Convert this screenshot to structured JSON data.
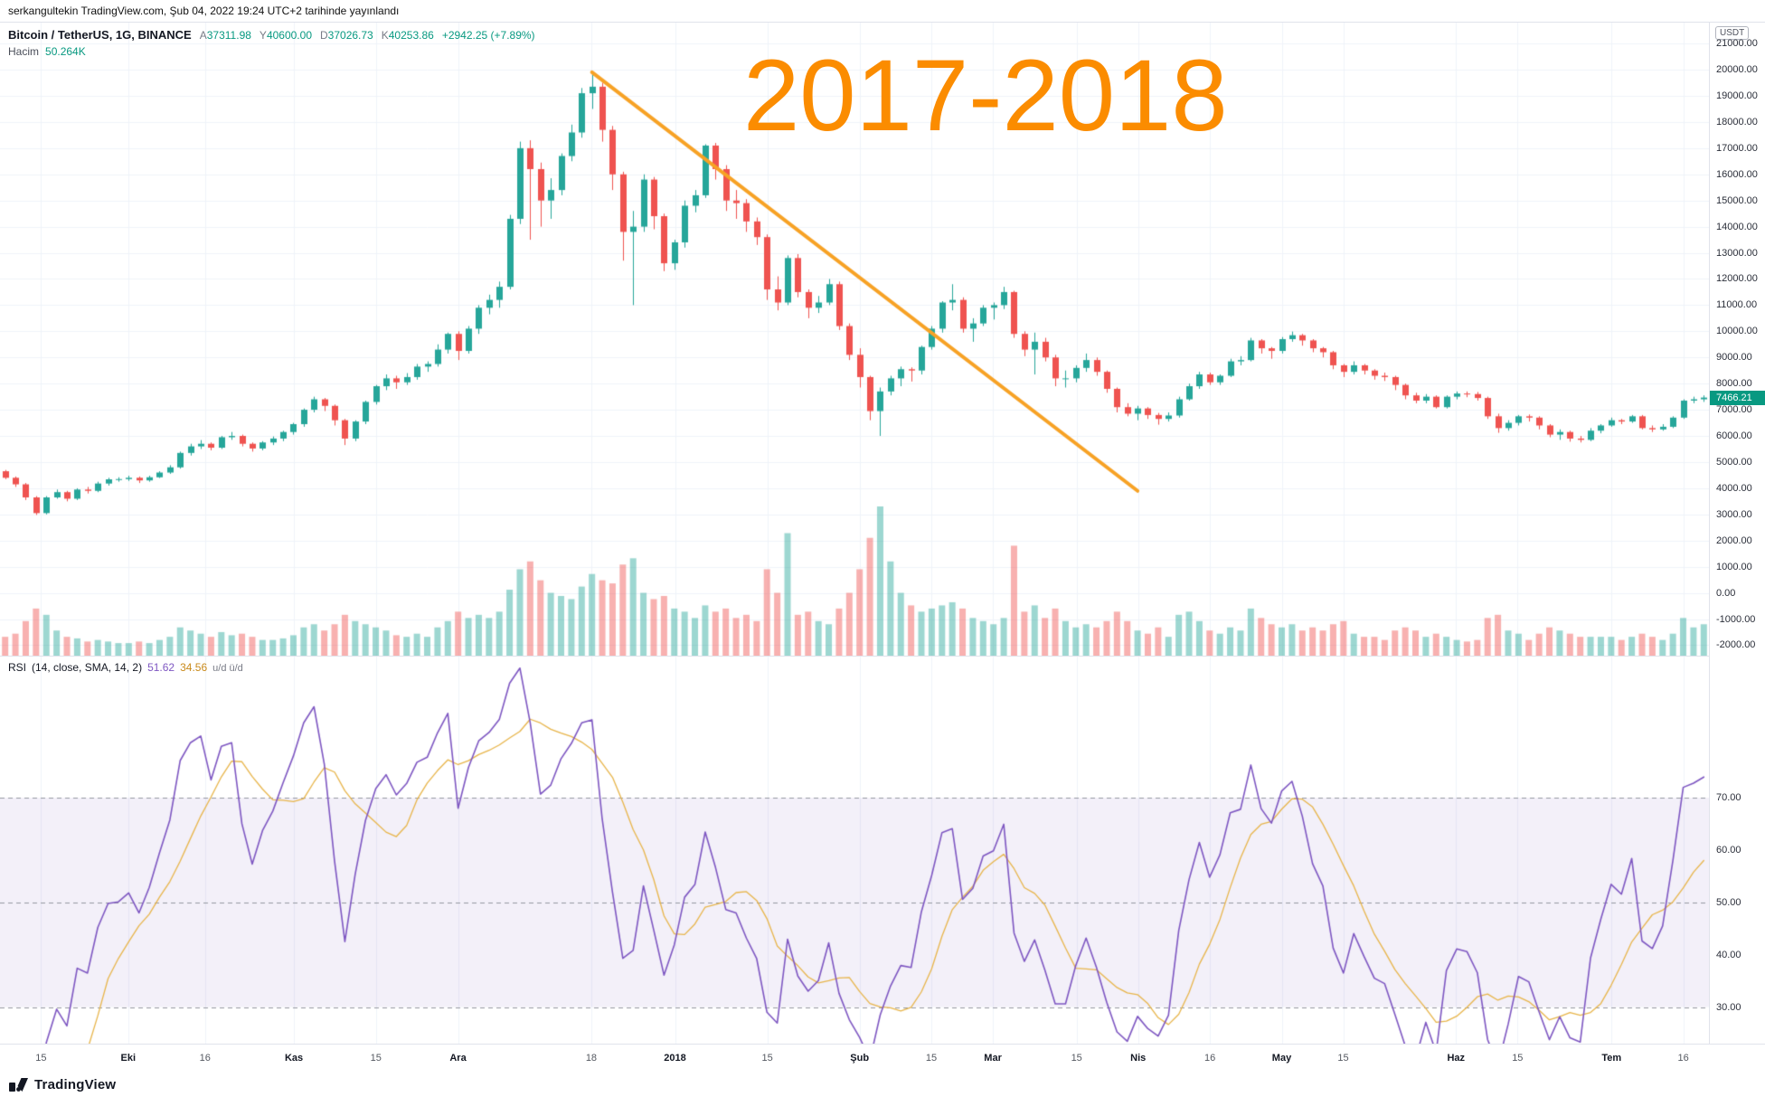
{
  "topbar": {
    "published": "serkangultekin TradingView.com, Şub 04, 2022 19:24 UTC+2 tarihinde yayınlandı"
  },
  "header": {
    "symbol": "Bitcoin / TetherUS, 1G, BINANCE",
    "ohlc": [
      {
        "label": "A",
        "value": "37311.98"
      },
      {
        "label": "Y",
        "value": "40600.00"
      },
      {
        "label": "D",
        "value": "37026.73"
      },
      {
        "label": "K",
        "value": "40253.86"
      }
    ],
    "change": "+2942.25 (+7.89%)",
    "volume_label": "Hacim",
    "volume_value": "50.264K"
  },
  "annotation": {
    "text": "2017-2018",
    "color": "#FB8C00"
  },
  "price_axis": {
    "currency": "USDT",
    "last_price": "7466.21",
    "ticks": [
      "21000.00",
      "20000.00",
      "19000.00",
      "18000.00",
      "17000.00",
      "16000.00",
      "15000.00",
      "14000.00",
      "13000.00",
      "12000.00",
      "11000.00",
      "10000.00",
      "9000.00",
      "8000.00",
      "7000.00",
      "6000.00",
      "5000.00",
      "4000.00",
      "3000.00",
      "2000.00",
      "1000.00",
      "0.00",
      "-1000.00",
      "-2000.00"
    ]
  },
  "rsi": {
    "title": "RSI",
    "params": "(14, close, SMA, 14, 2)",
    "value": "51.62",
    "ma_value": "34.56",
    "extra": "u/d ü/d",
    "ticks": [
      "70.00",
      "60.00",
      "50.00",
      "40.00",
      "30.00"
    ]
  },
  "time_axis": {
    "labels": [
      {
        "text": "15",
        "pos": 0.024,
        "strong": false
      },
      {
        "text": "Eki",
        "pos": 0.075,
        "strong": true
      },
      {
        "text": "16",
        "pos": 0.12,
        "strong": false
      },
      {
        "text": "Kas",
        "pos": 0.172,
        "strong": true
      },
      {
        "text": "15",
        "pos": 0.22,
        "strong": false
      },
      {
        "text": "Ara",
        "pos": 0.268,
        "strong": true
      },
      {
        "text": "18",
        "pos": 0.346,
        "strong": false
      },
      {
        "text": "2018",
        "pos": 0.395,
        "strong": true
      },
      {
        "text": "15",
        "pos": 0.449,
        "strong": false
      },
      {
        "text": "Şub",
        "pos": 0.503,
        "strong": true
      },
      {
        "text": "15",
        "pos": 0.545,
        "strong": false
      },
      {
        "text": "Mar",
        "pos": 0.581,
        "strong": true
      },
      {
        "text": "15",
        "pos": 0.63,
        "strong": false
      },
      {
        "text": "Nis",
        "pos": 0.666,
        "strong": true
      },
      {
        "text": "16",
        "pos": 0.708,
        "strong": false
      },
      {
        "text": "May",
        "pos": 0.75,
        "strong": true
      },
      {
        "text": "15",
        "pos": 0.786,
        "strong": false
      },
      {
        "text": "Haz",
        "pos": 0.852,
        "strong": true
      },
      {
        "text": "15",
        "pos": 0.888,
        "strong": false
      },
      {
        "text": "Tem",
        "pos": 0.943,
        "strong": true
      },
      {
        "text": "16",
        "pos": 0.985,
        "strong": false
      }
    ]
  },
  "footer": {
    "brand": "TradingView"
  },
  "chart_data": {
    "type": "candlestick",
    "title": "Bitcoin / TetherUS, daily, Sep 2017 - Jul 2018 with descending trendline",
    "price_range": [
      -2400,
      21800
    ],
    "grid_step": 1000,
    "volume_max": 95,
    "rsi_range": [
      23,
      97
    ],
    "rsi_bands": [
      70,
      50,
      30
    ],
    "rsi_period": 7,
    "rsi_ma_period": 7,
    "trendline": {
      "from_index": 57,
      "from_price": 19900,
      "to_index": 110,
      "to_price": 3900,
      "color": "#F7A225",
      "width": 4
    },
    "colors": {
      "up": "#26a69a",
      "down": "#ef5350",
      "vol_up": "rgba(38,166,154,0.45)",
      "vol_down": "rgba(239,83,80,0.45)",
      "rsi_line": "#7E57C2",
      "rsi_ma": "#E8B54A",
      "band_fill": "rgba(126,87,194,0.09)",
      "band_line": "#9598A1",
      "grid": "#F0F3FA"
    },
    "candles": [
      [
        4650,
        4700,
        4350,
        4400,
        12
      ],
      [
        4400,
        4450,
        4050,
        4150,
        14
      ],
      [
        4150,
        4200,
        3550,
        3650,
        22
      ],
      [
        3650,
        3700,
        2980,
        3050,
        30
      ],
      [
        3050,
        3700,
        3000,
        3650,
        26
      ],
      [
        3650,
        3950,
        3600,
        3850,
        16
      ],
      [
        3850,
        3900,
        3500,
        3600,
        12
      ],
      [
        3600,
        4000,
        3550,
        3950,
        11
      ],
      [
        3950,
        4050,
        3800,
        3900,
        9
      ],
      [
        3900,
        4250,
        3850,
        4180,
        10
      ],
      [
        4180,
        4400,
        4100,
        4340,
        9
      ],
      [
        4340,
        4420,
        4250,
        4350,
        8
      ],
      [
        4350,
        4480,
        4280,
        4400,
        8
      ],
      [
        4400,
        4450,
        4200,
        4300,
        9
      ],
      [
        4300,
        4480,
        4250,
        4420,
        8
      ],
      [
        4420,
        4650,
        4390,
        4600,
        10
      ],
      [
        4600,
        4880,
        4550,
        4800,
        12
      ],
      [
        4800,
        5400,
        4750,
        5350,
        18
      ],
      [
        5350,
        5700,
        5250,
        5600,
        16
      ],
      [
        5600,
        5840,
        5500,
        5700,
        14
      ],
      [
        5700,
        5750,
        5450,
        5550,
        12
      ],
      [
        5550,
        6000,
        5500,
        5950,
        15
      ],
      [
        5950,
        6150,
        5850,
        6000,
        13
      ],
      [
        6000,
        6050,
        5600,
        5700,
        14
      ],
      [
        5700,
        5750,
        5400,
        5520,
        12
      ],
      [
        5520,
        5800,
        5450,
        5750,
        10
      ],
      [
        5750,
        5980,
        5650,
        5900,
        10
      ],
      [
        5900,
        6200,
        5800,
        6150,
        11
      ],
      [
        6150,
        6500,
        6050,
        6450,
        13
      ],
      [
        6450,
        7050,
        6350,
        7000,
        18
      ],
      [
        7000,
        7500,
        6900,
        7400,
        20
      ],
      [
        7400,
        7450,
        6950,
        7150,
        16
      ],
      [
        7150,
        7200,
        6400,
        6600,
        20
      ],
      [
        6600,
        6650,
        5650,
        5900,
        26
      ],
      [
        5900,
        6600,
        5800,
        6550,
        22
      ],
      [
        6550,
        7350,
        6450,
        7300,
        20
      ],
      [
        7300,
        7950,
        7200,
        7900,
        18
      ],
      [
        7900,
        8350,
        7750,
        8200,
        16
      ],
      [
        8200,
        8300,
        7800,
        8050,
        13
      ],
      [
        8050,
        8400,
        7950,
        8250,
        12
      ],
      [
        8250,
        8750,
        8150,
        8650,
        14
      ],
      [
        8650,
        8850,
        8450,
        8750,
        12
      ],
      [
        8750,
        9500,
        8650,
        9300,
        18
      ],
      [
        9300,
        9950,
        9150,
        9900,
        22
      ],
      [
        9900,
        10000,
        8900,
        9250,
        28
      ],
      [
        9250,
        10200,
        9150,
        10100,
        24
      ],
      [
        10100,
        11000,
        9900,
        10900,
        26
      ],
      [
        10900,
        11400,
        10650,
        11200,
        24
      ],
      [
        11200,
        11900,
        10900,
        11700,
        28
      ],
      [
        11700,
        14450,
        11600,
        14300,
        42
      ],
      [
        14300,
        17250,
        14100,
        17000,
        55
      ],
      [
        17000,
        17300,
        13500,
        16200,
        60
      ],
      [
        16200,
        16450,
        14000,
        15000,
        48
      ],
      [
        15000,
        15850,
        14300,
        15400,
        40
      ],
      [
        15400,
        16800,
        15200,
        16700,
        38
      ],
      [
        16700,
        17900,
        16500,
        17600,
        36
      ],
      [
        17600,
        19300,
        17400,
        19100,
        44
      ],
      [
        19100,
        19900,
        18500,
        19350,
        52
      ],
      [
        19350,
        19500,
        17250,
        17700,
        48
      ],
      [
        17700,
        17850,
        15400,
        16000,
        46
      ],
      [
        16000,
        16100,
        12700,
        13800,
        58
      ],
      [
        13800,
        14600,
        11000,
        14000,
        62
      ],
      [
        14000,
        16000,
        13800,
        15800,
        40
      ],
      [
        15800,
        15900,
        13900,
        14400,
        36
      ],
      [
        14400,
        14500,
        12300,
        12600,
        38
      ],
      [
        12600,
        13500,
        12350,
        13400,
        30
      ],
      [
        13400,
        15000,
        13200,
        14800,
        28
      ],
      [
        14800,
        15400,
        14550,
        15200,
        24
      ],
      [
        15200,
        17150,
        15100,
        17100,
        32
      ],
      [
        17100,
        17200,
        15800,
        16200,
        28
      ],
      [
        16200,
        16350,
        14600,
        15000,
        30
      ],
      [
        15000,
        15400,
        14300,
        14900,
        24
      ],
      [
        14900,
        15050,
        13800,
        14200,
        26
      ],
      [
        14200,
        14350,
        13300,
        13600,
        22
      ],
      [
        13600,
        13700,
        11200,
        11600,
        55
      ],
      [
        11600,
        12100,
        10800,
        11100,
        40
      ],
      [
        11100,
        12900,
        11000,
        12800,
        78
      ],
      [
        12800,
        12950,
        11300,
        11500,
        26
      ],
      [
        11500,
        11600,
        10500,
        10900,
        28
      ],
      [
        10900,
        11350,
        10700,
        11100,
        22
      ],
      [
        11100,
        12000,
        11000,
        11800,
        20
      ],
      [
        11800,
        11900,
        10050,
        10200,
        30
      ],
      [
        10200,
        10300,
        8900,
        9100,
        40
      ],
      [
        9100,
        9350,
        7850,
        8250,
        55
      ],
      [
        8250,
        8300,
        6600,
        6950,
        75
      ],
      [
        6950,
        7850,
        6000,
        7700,
        95
      ],
      [
        7700,
        8300,
        7550,
        8200,
        60
      ],
      [
        8200,
        8650,
        7900,
        8550,
        40
      ],
      [
        8550,
        8620,
        8080,
        8500,
        32
      ],
      [
        8500,
        9450,
        8350,
        9400,
        28
      ],
      [
        9400,
        10200,
        9300,
        10100,
        30
      ],
      [
        10100,
        11150,
        9950,
        11100,
        32
      ],
      [
        11100,
        11800,
        10800,
        11200,
        34
      ],
      [
        11200,
        11300,
        9950,
        10100,
        30
      ],
      [
        10100,
        10500,
        9600,
        10300,
        24
      ],
      [
        10300,
        11000,
        10200,
        10900,
        22
      ],
      [
        10900,
        11100,
        10450,
        11000,
        20
      ],
      [
        11000,
        11700,
        10850,
        11500,
        24
      ],
      [
        11500,
        11550,
        9750,
        9900,
        70
      ],
      [
        9900,
        10000,
        9050,
        9300,
        28
      ],
      [
        9300,
        9950,
        8350,
        9600,
        32
      ],
      [
        9600,
        9750,
        8850,
        9000,
        24
      ],
      [
        9000,
        9100,
        7900,
        8200,
        30
      ],
      [
        8200,
        8500,
        7850,
        8200,
        22
      ],
      [
        8200,
        8700,
        8050,
        8600,
        18
      ],
      [
        8600,
        9150,
        8450,
        8900,
        20
      ],
      [
        8900,
        9000,
        8300,
        8450,
        18
      ],
      [
        8450,
        8500,
        7650,
        7800,
        22
      ],
      [
        7800,
        7850,
        6900,
        7100,
        28
      ],
      [
        7100,
        7250,
        6750,
        6850,
        22
      ],
      [
        6850,
        7150,
        6600,
        7050,
        16
      ],
      [
        7050,
        7100,
        6650,
        6800,
        14
      ],
      [
        6800,
        6880,
        6430,
        6650,
        18
      ],
      [
        6650,
        6900,
        6550,
        6780,
        12
      ],
      [
        6780,
        7500,
        6700,
        7400,
        26
      ],
      [
        7400,
        8000,
        7350,
        7900,
        28
      ],
      [
        7900,
        8450,
        7800,
        8350,
        22
      ],
      [
        8350,
        8420,
        7950,
        8050,
        16
      ],
      [
        8050,
        8350,
        7950,
        8300,
        14
      ],
      [
        8300,
        8950,
        8250,
        8850,
        18
      ],
      [
        8850,
        9050,
        8700,
        8900,
        16
      ],
      [
        8900,
        9750,
        8850,
        9650,
        30
      ],
      [
        9650,
        9700,
        9150,
        9350,
        24
      ],
      [
        9350,
        9400,
        8950,
        9250,
        20
      ],
      [
        9250,
        9780,
        9150,
        9700,
        18
      ],
      [
        9700,
        9990,
        9600,
        9850,
        20
      ],
      [
        9850,
        9900,
        9450,
        9650,
        16
      ],
      [
        9650,
        9700,
        9200,
        9350,
        18
      ],
      [
        9350,
        9400,
        9000,
        9200,
        16
      ],
      [
        9200,
        9250,
        8550,
        8700,
        20
      ],
      [
        8700,
        8750,
        8250,
        8450,
        22
      ],
      [
        8450,
        8850,
        8350,
        8700,
        14
      ],
      [
        8700,
        8750,
        8350,
        8500,
        12
      ],
      [
        8500,
        8550,
        8150,
        8300,
        12
      ],
      [
        8300,
        8420,
        8100,
        8250,
        10
      ],
      [
        8250,
        8300,
        7750,
        7950,
        16
      ],
      [
        7950,
        8000,
        7400,
        7550,
        18
      ],
      [
        7550,
        7650,
        7250,
        7350,
        16
      ],
      [
        7350,
        7600,
        7250,
        7500,
        12
      ],
      [
        7500,
        7550,
        7050,
        7100,
        14
      ],
      [
        7100,
        7550,
        7050,
        7500,
        12
      ],
      [
        7500,
        7700,
        7400,
        7620,
        10
      ],
      [
        7620,
        7700,
        7480,
        7600,
        9
      ],
      [
        7600,
        7680,
        7350,
        7450,
        10
      ],
      [
        7450,
        7500,
        6650,
        6750,
        24
      ],
      [
        6750,
        6850,
        6120,
        6300,
        26
      ],
      [
        6300,
        6600,
        6200,
        6500,
        16
      ],
      [
        6500,
        6800,
        6400,
        6750,
        14
      ],
      [
        6750,
        6820,
        6550,
        6700,
        10
      ],
      [
        6700,
        6750,
        6250,
        6400,
        14
      ],
      [
        6400,
        6450,
        5950,
        6050,
        18
      ],
      [
        6050,
        6250,
        5850,
        6150,
        16
      ],
      [
        6150,
        6200,
        5780,
        5900,
        14
      ],
      [
        5900,
        6000,
        5750,
        5850,
        12
      ],
      [
        5850,
        6300,
        5800,
        6200,
        12
      ],
      [
        6200,
        6450,
        6100,
        6400,
        12
      ],
      [
        6400,
        6700,
        6350,
        6600,
        12
      ],
      [
        6600,
        6650,
        6450,
        6550,
        10
      ],
      [
        6550,
        6800,
        6500,
        6750,
        12
      ],
      [
        6750,
        6800,
        6250,
        6300,
        14
      ],
      [
        6300,
        6400,
        6150,
        6250,
        12
      ],
      [
        6250,
        6450,
        6200,
        6350,
        10
      ],
      [
        6350,
        6750,
        6300,
        6700,
        14
      ],
      [
        6700,
        7400,
        6650,
        7350,
        24
      ],
      [
        7350,
        7500,
        7250,
        7400,
        18
      ],
      [
        7400,
        7550,
        7300,
        7466.21,
        20
      ]
    ]
  }
}
